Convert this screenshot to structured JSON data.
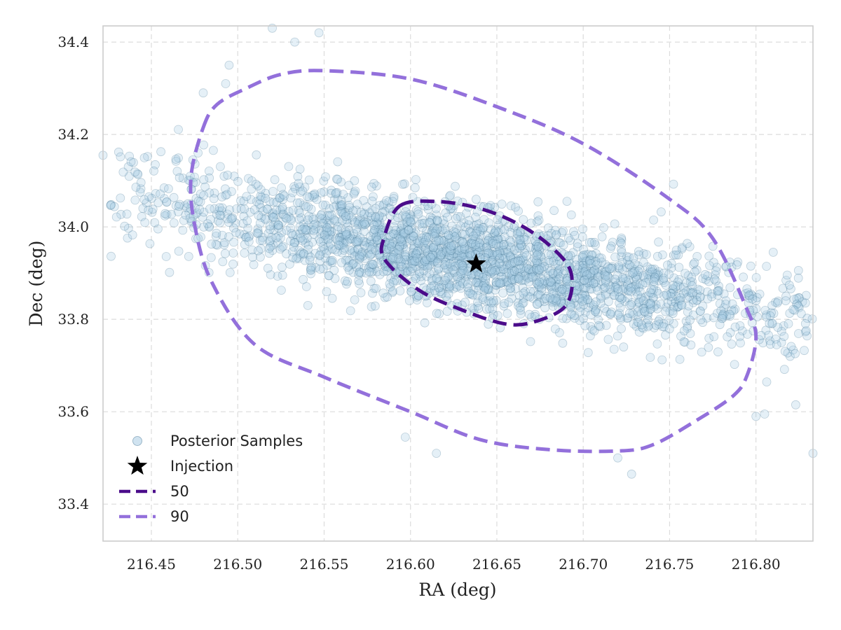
{
  "chart_data": {
    "type": "scatter",
    "xlabel": "RA (deg)",
    "ylabel": "Dec (deg)",
    "xlim": [
      216.422,
      216.833
    ],
    "ylim": [
      33.32,
      34.435
    ],
    "xticks": [
      216.45,
      216.5,
      216.55,
      216.6,
      216.65,
      216.7,
      216.75,
      216.8
    ],
    "xtick_labels": [
      "216.45",
      "216.50",
      "216.55",
      "216.60",
      "216.65",
      "216.70",
      "216.75",
      "216.80"
    ],
    "yticks": [
      33.4,
      33.6,
      33.8,
      34.0,
      34.2,
      34.4
    ],
    "ytick_labels": [
      "33.4",
      "33.6",
      "33.8",
      "34.0",
      "34.2",
      "34.4"
    ],
    "grid": true,
    "legend": {
      "placement": "lower-left",
      "entries": [
        "Posterior Samples",
        "Injection",
        "50",
        "90"
      ]
    },
    "series": [
      {
        "name": "Posterior Samples",
        "kind": "scatter",
        "distribution": {
          "center": [
            216.635,
            33.93
          ],
          "std_major_ra": 0.06,
          "std_minor_dec": 0.085,
          "tilt_ra_per_dec": -0.43,
          "n": 2600
        },
        "outliers": [
          [
            216.422,
            34.155
          ],
          [
            216.52,
            34.43
          ],
          [
            216.547,
            34.42
          ],
          [
            216.533,
            34.4
          ],
          [
            216.8,
            33.59
          ],
          [
            216.805,
            33.595
          ],
          [
            216.823,
            33.615
          ],
          [
            216.833,
            33.51
          ],
          [
            216.803,
            33.765
          ],
          [
            216.812,
            33.745
          ],
          [
            216.806,
            33.805
          ],
          [
            216.797,
            33.915
          ],
          [
            216.81,
            33.945
          ],
          [
            216.733,
            33.315
          ],
          [
            216.72,
            33.5
          ],
          [
            216.728,
            33.465
          ],
          [
            216.615,
            33.51
          ],
          [
            216.597,
            33.545
          ],
          [
            216.477,
            34.16
          ],
          [
            216.474,
            34.145
          ],
          [
            216.476,
            34.005
          ],
          [
            216.477,
            33.975
          ],
          [
            216.48,
            34.29
          ],
          [
            216.495,
            34.35
          ],
          [
            216.493,
            34.31
          ]
        ]
      },
      {
        "name": "Injection",
        "kind": "marker",
        "x": 216.638,
        "y": 33.92
      },
      {
        "name": "50",
        "kind": "contour",
        "points": [
          [
            216.594,
            34.046
          ],
          [
            216.615,
            34.055
          ],
          [
            216.64,
            34.04
          ],
          [
            216.663,
            34.005
          ],
          [
            216.682,
            33.955
          ],
          [
            216.693,
            33.9
          ],
          [
            216.69,
            33.83
          ],
          [
            216.672,
            33.795
          ],
          [
            216.655,
            33.79
          ],
          [
            216.63,
            33.82
          ],
          [
            216.605,
            33.863
          ],
          [
            216.585,
            33.93
          ],
          [
            216.585,
            33.98
          ],
          [
            216.594,
            34.046
          ]
        ]
      },
      {
        "name": "90",
        "kind": "contour",
        "points": [
          [
            216.48,
            34.215
          ],
          [
            216.488,
            34.265
          ],
          [
            216.505,
            34.3
          ],
          [
            216.525,
            34.33
          ],
          [
            216.55,
            34.338
          ],
          [
            216.6,
            34.32
          ],
          [
            216.65,
            34.26
          ],
          [
            216.7,
            34.18
          ],
          [
            216.75,
            34.06
          ],
          [
            216.775,
            33.975
          ],
          [
            216.795,
            33.82
          ],
          [
            216.8,
            33.76
          ],
          [
            216.795,
            33.68
          ],
          [
            216.787,
            33.635
          ],
          [
            216.765,
            33.58
          ],
          [
            216.74,
            33.528
          ],
          [
            216.72,
            33.515
          ],
          [
            216.68,
            33.518
          ],
          [
            216.64,
            33.54
          ],
          [
            216.6,
            33.6
          ],
          [
            216.55,
            33.675
          ],
          [
            216.51,
            33.745
          ],
          [
            216.485,
            33.88
          ],
          [
            216.475,
            34.005
          ],
          [
            216.473,
            34.11
          ],
          [
            216.48,
            34.215
          ]
        ]
      }
    ],
    "colors": {
      "sample_fill": "#a9cce3",
      "sample_edge": "#3e6f8e",
      "injection": "#000000",
      "contour_50": "#4b0c8a",
      "contour_90": "#9370db",
      "grid": "#dcdcdc",
      "frame": "#cccccc"
    }
  }
}
